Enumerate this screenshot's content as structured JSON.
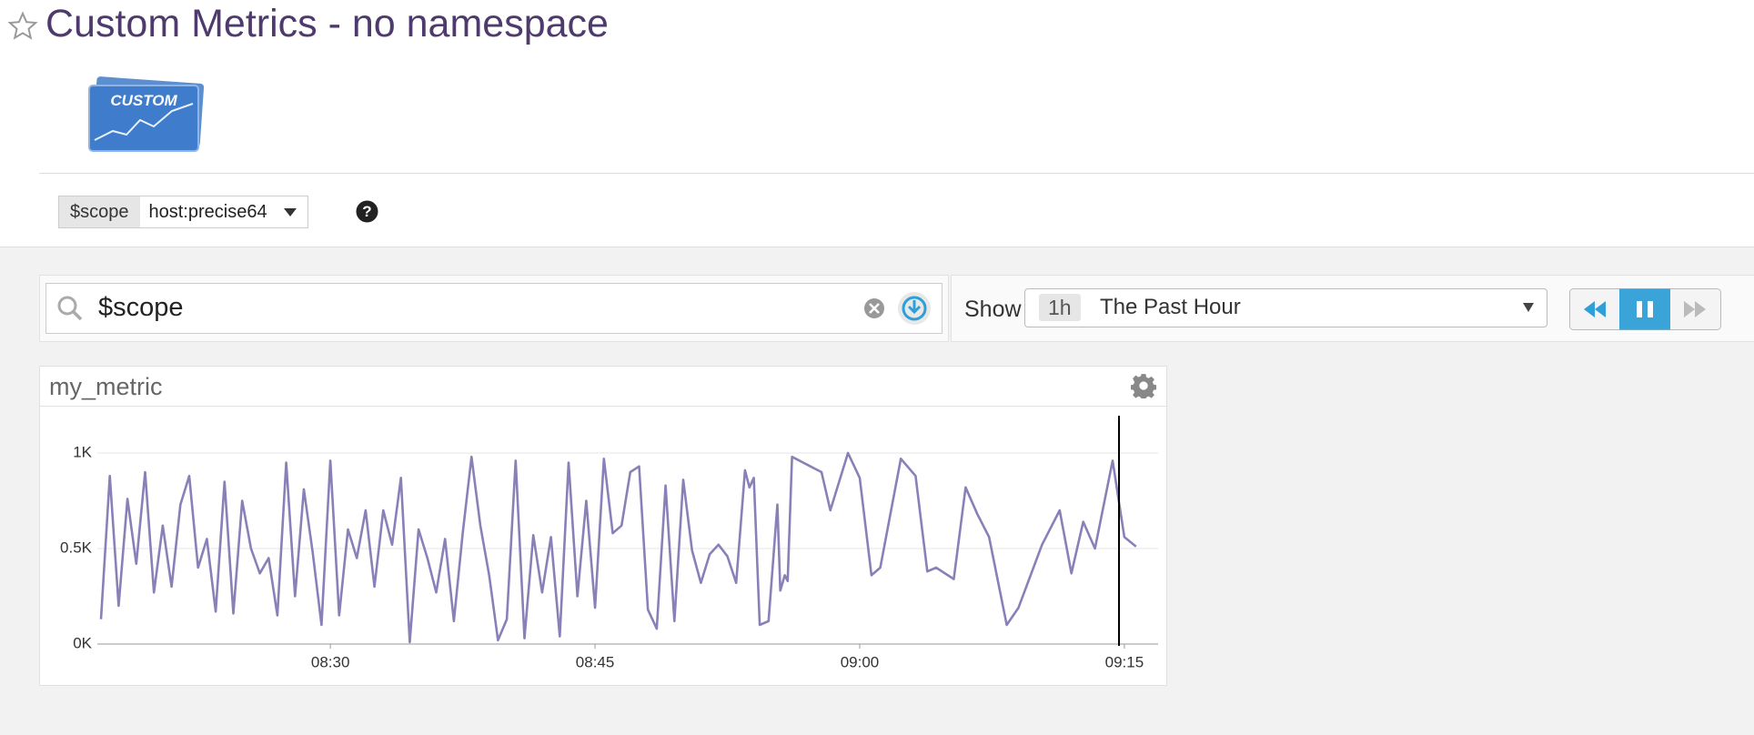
{
  "header": {
    "title": "Custom Metrics - no namespace",
    "logo_text": "CUSTOM"
  },
  "template_variable": {
    "name": "$scope",
    "value": "host:precise64"
  },
  "search": {
    "query": "$scope"
  },
  "timeframe": {
    "label": "Show",
    "badge": "1h",
    "value": "The Past Hour"
  },
  "chart_data": {
    "type": "line",
    "title": "my_metric",
    "color": "#8a80b8",
    "grid": true,
    "x": [
      "08:17:00",
      "08:17:30",
      "08:18:00",
      "08:18:30",
      "08:19:00",
      "08:19:30",
      "08:20:00",
      "08:20:30",
      "08:21:00",
      "08:21:30",
      "08:22:00",
      "08:22:30",
      "08:23:00",
      "08:23:30",
      "08:24:00",
      "08:24:30",
      "08:25:00",
      "08:25:30",
      "08:26:00",
      "08:26:30",
      "08:27:00",
      "08:27:30",
      "08:28:00",
      "08:28:30",
      "08:29:00",
      "08:29:30",
      "08:30:00",
      "08:30:30",
      "08:31:00",
      "08:31:30",
      "08:32:00",
      "08:32:30",
      "08:33:00",
      "08:33:30",
      "08:34:00",
      "08:34:30",
      "08:35:00",
      "08:35:30",
      "08:36:00",
      "08:36:30",
      "08:37:00",
      "08:37:30",
      "08:38:00",
      "08:38:30",
      "08:39:00",
      "08:39:30",
      "08:40:00",
      "08:40:30",
      "08:41:00",
      "08:41:30",
      "08:42:00",
      "08:42:30",
      "08:43:00",
      "08:43:30",
      "08:44:00",
      "08:44:30",
      "08:45:00",
      "08:45:30",
      "08:46:00",
      "08:46:30",
      "08:47:00",
      "08:47:30",
      "08:48:00",
      "08:48:30",
      "08:49:00",
      "08:49:30",
      "08:50:00",
      "08:50:30",
      "08:51:00",
      "08:51:30",
      "08:52:00",
      "08:52:30",
      "08:53:00",
      "08:53:30",
      "08:53:45",
      "08:54:00",
      "08:54:20",
      "08:54:50",
      "08:55:20",
      "08:55:30",
      "08:55:45",
      "08:55:55",
      "08:56:10",
      "08:57:50",
      "08:58:20",
      "08:59:20",
      "09:00:00",
      "09:00:40",
      "09:01:10",
      "09:02:20",
      "09:03:10",
      "09:03:50",
      "09:04:20",
      "09:05:20",
      "09:06:00",
      "09:06:40",
      "09:07:20",
      "09:08:20",
      "09:09:00",
      "09:10:20",
      "09:11:20",
      "09:12:00",
      "09:12:40",
      "09:13:20",
      "09:14:20",
      "09:15:00",
      "09:15:40"
    ],
    "values": [
      130,
      880,
      200,
      760,
      420,
      900,
      270,
      620,
      300,
      730,
      880,
      400,
      550,
      170,
      850,
      160,
      750,
      500,
      370,
      450,
      150,
      950,
      250,
      810,
      480,
      100,
      960,
      150,
      600,
      450,
      700,
      300,
      700,
      520,
      870,
      10,
      600,
      450,
      270,
      550,
      120,
      580,
      980,
      620,
      360,
      20,
      130,
      960,
      30,
      570,
      270,
      560,
      40,
      950,
      250,
      750,
      190,
      970,
      580,
      620,
      900,
      930,
      180,
      80,
      830,
      120,
      860,
      490,
      320,
      470,
      520,
      460,
      320,
      910,
      820,
      870,
      100,
      120,
      730,
      280,
      360,
      330,
      980,
      900,
      700,
      1000,
      870,
      360,
      400,
      970,
      880,
      380,
      400,
      340,
      820,
      680,
      560,
      100,
      190,
      520,
      700,
      370,
      640,
      500,
      960,
      560,
      510
    ],
    "xlim": [
      "08:17:00",
      "09:16:30"
    ],
    "xticks": [
      "08:30",
      "08:45",
      "09:00",
      "09:15"
    ],
    "ylim": [
      0,
      1200
    ],
    "yticks": [
      {
        "value": 0,
        "label": "0K"
      },
      {
        "value": 500,
        "label": "0.5K"
      },
      {
        "value": 1000,
        "label": "1K"
      }
    ]
  }
}
